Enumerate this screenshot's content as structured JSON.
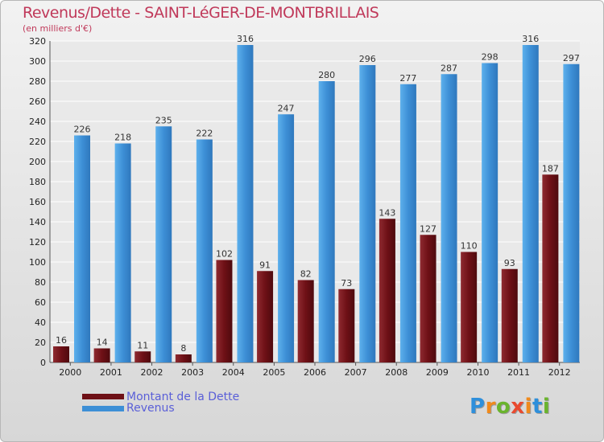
{
  "header": {
    "title": "Revenus/Dette - SAINT-LéGER-DE-MONTBRILLAIS",
    "subtitle": "(en milliers d'€)"
  },
  "colors": {
    "debt": "#6e1016",
    "revenue": "#3d8fd6",
    "background": "#e6e6e6",
    "title": "#c0395a",
    "legend_text": "#5a5fd8"
  },
  "legend": {
    "items": [
      {
        "label": "Montant de la Dette",
        "color": "#6e1016"
      },
      {
        "label": "Revenus",
        "color": "#3d8fd6"
      }
    ]
  },
  "logo": {
    "text": "Proxiti",
    "letter_colors": [
      "#2e8fdb",
      "#f08a1c",
      "#6ab42d",
      "#e94a2f",
      "#f08a1c",
      "#2e8fdb",
      "#6ab42d"
    ]
  },
  "chart_data": {
    "type": "bar",
    "categories": [
      "2000",
      "2001",
      "2002",
      "2003",
      "2004",
      "2005",
      "2006",
      "2007",
      "2008",
      "2009",
      "2010",
      "2011",
      "2012"
    ],
    "series": [
      {
        "name": "Montant de la Dette",
        "values": [
          16,
          14,
          11,
          8,
          102,
          91,
          82,
          73,
          143,
          127,
          110,
          93,
          187
        ]
      },
      {
        "name": "Revenus",
        "values": [
          226,
          218,
          235,
          222,
          316,
          247,
          280,
          296,
          277,
          287,
          298,
          316,
          297
        ]
      }
    ],
    "ylim": [
      0,
      320
    ],
    "yticks": [
      0,
      20,
      40,
      60,
      80,
      100,
      120,
      140,
      160,
      180,
      200,
      220,
      240,
      260,
      280,
      300,
      320
    ],
    "grid": true,
    "legend_position": "bottom-left"
  }
}
